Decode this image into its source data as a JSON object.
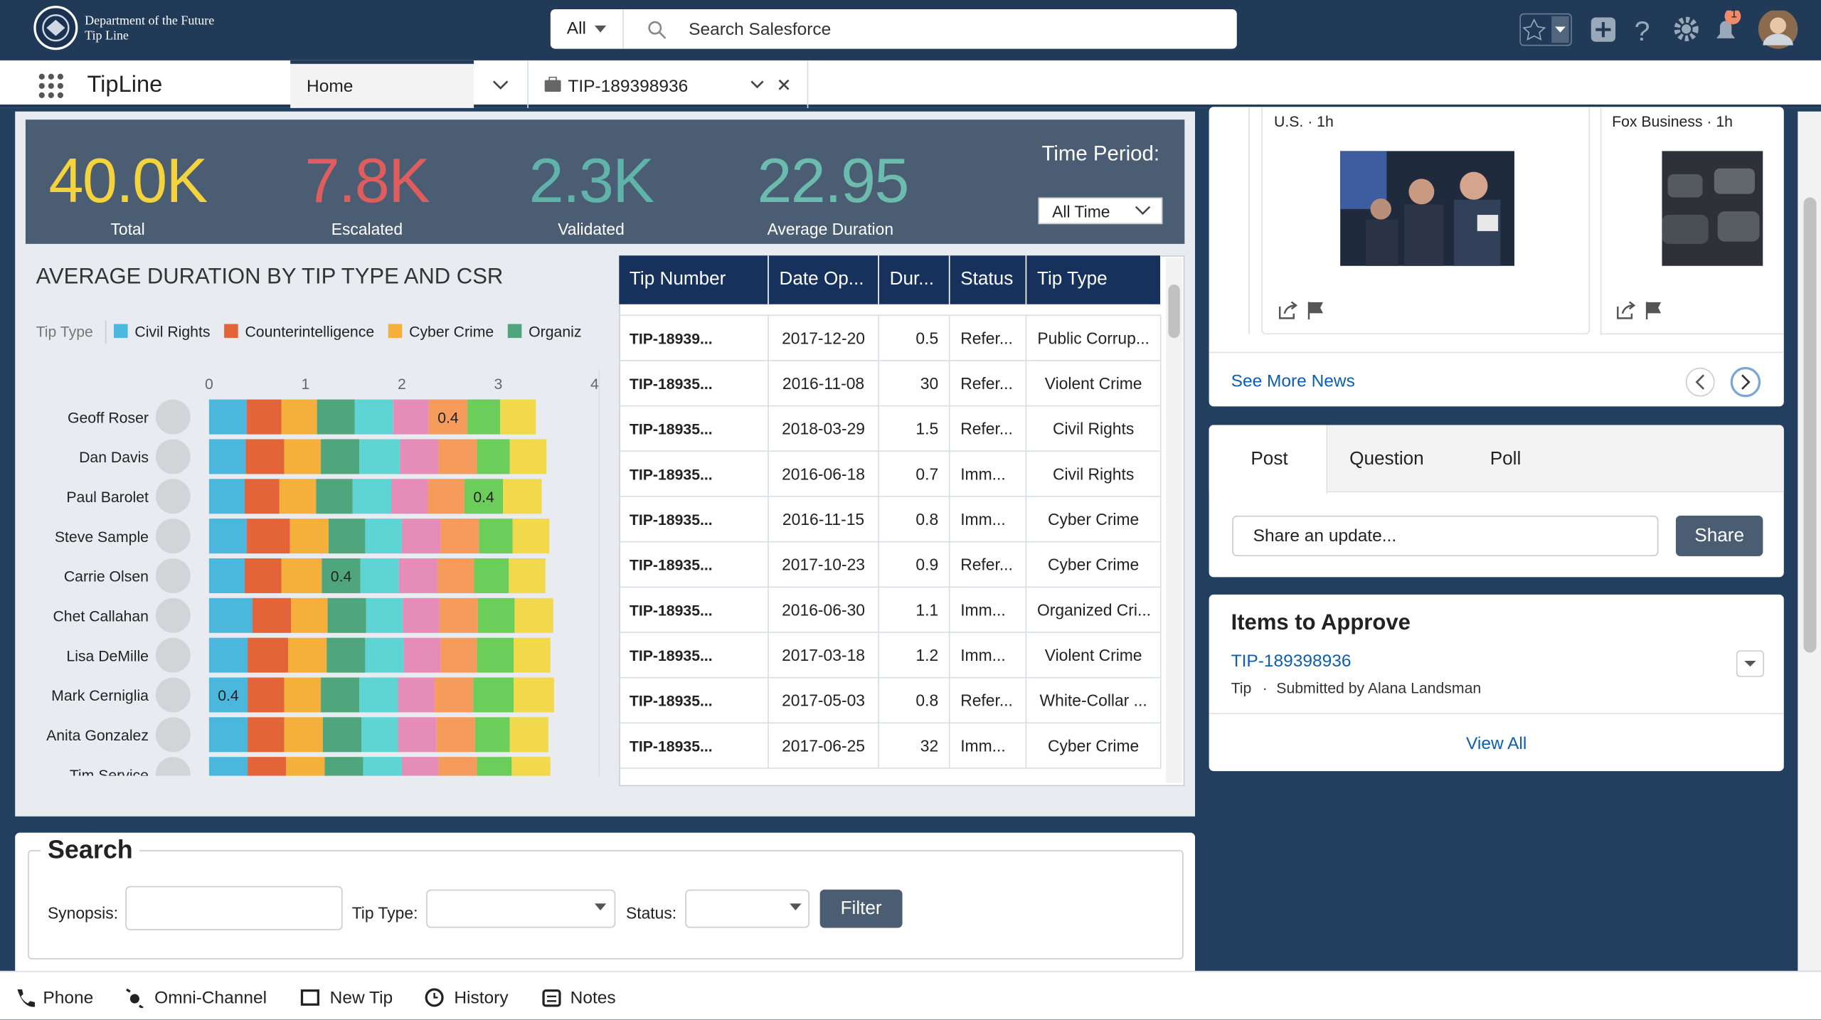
{
  "header": {
    "org_line1": "Department of the Future",
    "org_line2": "Tip Line",
    "search_scope": "All",
    "search_placeholder": "Search Salesforce",
    "notification_count": "1"
  },
  "nav": {
    "app_name": "TipLine",
    "tabs": [
      "Home",
      "TIP-189398936"
    ]
  },
  "kpis": [
    {
      "value": "40.0K",
      "label": "Total",
      "color": "#f5d33c"
    },
    {
      "value": "7.8K",
      "label": "Escalated",
      "color": "#e05d5d"
    },
    {
      "value": "2.3K",
      "label": "Validated",
      "color": "#5fb3a8"
    },
    {
      "value": "22.95",
      "label": "Average Duration",
      "color": "#6bbcae"
    }
  ],
  "time_period": {
    "label": "Time Period:",
    "value": "All Time"
  },
  "chart_data": {
    "type": "bar",
    "orientation": "horizontal",
    "stacked": true,
    "title": "AVERAGE DURATION  BY TIP TYPE AND CSR",
    "legend_title": "Tip Type",
    "categories": [
      "Geoff Roser",
      "Dan Davis",
      "Paul Barolet",
      "Steve Sample",
      "Carrie Olsen",
      "Chet Callahan",
      "Lisa DeMille",
      "Mark Cerniglia",
      "Anita Gonzalez",
      "Tim Service"
    ],
    "series": [
      {
        "name": "Civil Rights",
        "color": "#4cb7dc",
        "values": [
          0.39,
          0.38,
          0.37,
          0.39,
          0.37,
          0.45,
          0.4,
          0.4,
          0.4,
          0.4
        ],
        "value_labels": [
          null,
          null,
          null,
          null,
          null,
          null,
          null,
          "0.4",
          null,
          null
        ]
      },
      {
        "name": "Counterintelligence",
        "color": "#e4643a",
        "values": [
          0.36,
          0.4,
          0.36,
          0.45,
          0.38,
          0.4,
          0.42,
          0.38,
          0.38,
          0.4
        ],
        "value_labels": [
          null,
          null,
          null,
          null,
          null,
          null,
          null,
          null,
          null,
          null
        ]
      },
      {
        "name": "Cyber Crime",
        "color": "#f4b03b",
        "values": [
          0.37,
          0.38,
          0.38,
          0.4,
          0.42,
          0.38,
          0.4,
          0.38,
          0.4,
          0.4
        ],
        "value_labels": [
          null,
          null,
          null,
          null,
          null,
          null,
          null,
          null,
          null,
          null
        ]
      },
      {
        "name": "Organiz",
        "color": "#4fa57c",
        "values": [
          0.39,
          0.4,
          0.38,
          0.38,
          0.4,
          0.4,
          0.4,
          0.4,
          0.4,
          0.4
        ],
        "value_labels": [
          null,
          null,
          null,
          null,
          "0.4",
          null,
          null,
          null,
          null,
          null
        ]
      },
      {
        "color": "#5fd4d4",
        "values": [
          0.4,
          0.42,
          0.4,
          0.38,
          0.4,
          0.38,
          0.4,
          0.4,
          0.38,
          0.4
        ],
        "value_labels": [
          null,
          null,
          null,
          null,
          null,
          null,
          null,
          null,
          null,
          null
        ]
      },
      {
        "color": "#e58cb8",
        "values": [
          0.37,
          0.4,
          0.38,
          0.4,
          0.4,
          0.38,
          0.38,
          0.38,
          0.4,
          0.38
        ],
        "value_labels": [
          null,
          null,
          null,
          null,
          null,
          null,
          null,
          null,
          null,
          null
        ]
      },
      {
        "color": "#f59c5c",
        "values": [
          0.4,
          0.4,
          0.38,
          0.4,
          0.38,
          0.4,
          0.38,
          0.4,
          0.4,
          0.4
        ],
        "value_labels": [
          "0.4",
          null,
          null,
          null,
          null,
          null,
          null,
          null,
          null,
          null
        ]
      },
      {
        "color": "#6bcd5a",
        "values": [
          0.34,
          0.34,
          0.4,
          0.35,
          0.36,
          0.38,
          0.38,
          0.42,
          0.36,
          0.36
        ],
        "value_labels": [
          null,
          null,
          "0.4",
          null,
          null,
          null,
          null,
          null,
          null,
          null
        ]
      },
      {
        "color": "#f2d84b",
        "values": [
          0.37,
          0.38,
          0.4,
          0.38,
          0.38,
          0.4,
          0.38,
          0.42,
          0.4,
          0.4
        ],
        "value_labels": [
          null,
          null,
          null,
          null,
          null,
          null,
          null,
          null,
          null,
          null
        ]
      }
    ],
    "xlim": [
      0,
      4
    ],
    "xticks": [
      0,
      1,
      2,
      3,
      4
    ]
  },
  "table": {
    "columns": [
      "Tip Number",
      "Date Op...",
      "Dur...",
      "Status",
      "Tip Type"
    ],
    "rows": [
      [
        "TIP-18939...",
        "2017-12-20",
        "0.5",
        "Refer...",
        "Public Corrup..."
      ],
      [
        "TIP-18935...",
        "2016-11-08",
        "30",
        "Refer...",
        "Violent Crime"
      ],
      [
        "TIP-18935...",
        "2018-03-29",
        "1.5",
        "Refer...",
        "Civil Rights"
      ],
      [
        "TIP-18935...",
        "2016-06-18",
        "0.7",
        "Imm...",
        "Civil Rights"
      ],
      [
        "TIP-18935...",
        "2016-11-15",
        "0.8",
        "Imm...",
        "Cyber Crime"
      ],
      [
        "TIP-18935...",
        "2017-10-23",
        "0.9",
        "Refer...",
        "Cyber Crime"
      ],
      [
        "TIP-18935...",
        "2016-06-30",
        "1.1",
        "Imm...",
        "Organized Cri..."
      ],
      [
        "TIP-18935...",
        "2017-03-18",
        "1.2",
        "Imm...",
        "Violent Crime"
      ],
      [
        "TIP-18935...",
        "2017-05-03",
        "0.8",
        "Refer...",
        "White-Collar ..."
      ],
      [
        "TIP-18935...",
        "2017-06-25",
        "32",
        "Imm...",
        "Cyber Crime"
      ]
    ]
  },
  "news": {
    "items": [
      {
        "source": "U.S. · 1h"
      },
      {
        "source": "Fox Business · 1h"
      }
    ],
    "more": "See More News"
  },
  "publisher": {
    "tabs": [
      "Post",
      "Question",
      "Poll"
    ],
    "placeholder": "Share an update...",
    "button": "Share"
  },
  "approvals": {
    "title": "Items to Approve",
    "item_link": "TIP-189398936",
    "item_type": "Tip",
    "item_meta": "Submitted by Alana Landsman",
    "view_all": "View All"
  },
  "search": {
    "title": "Search",
    "fields": [
      "Synopsis:",
      "Tip Type:",
      "Status:"
    ],
    "button": "Filter"
  },
  "utility_bar": [
    "Phone",
    "Omni-Channel",
    "New Tip",
    "History",
    "Notes"
  ]
}
